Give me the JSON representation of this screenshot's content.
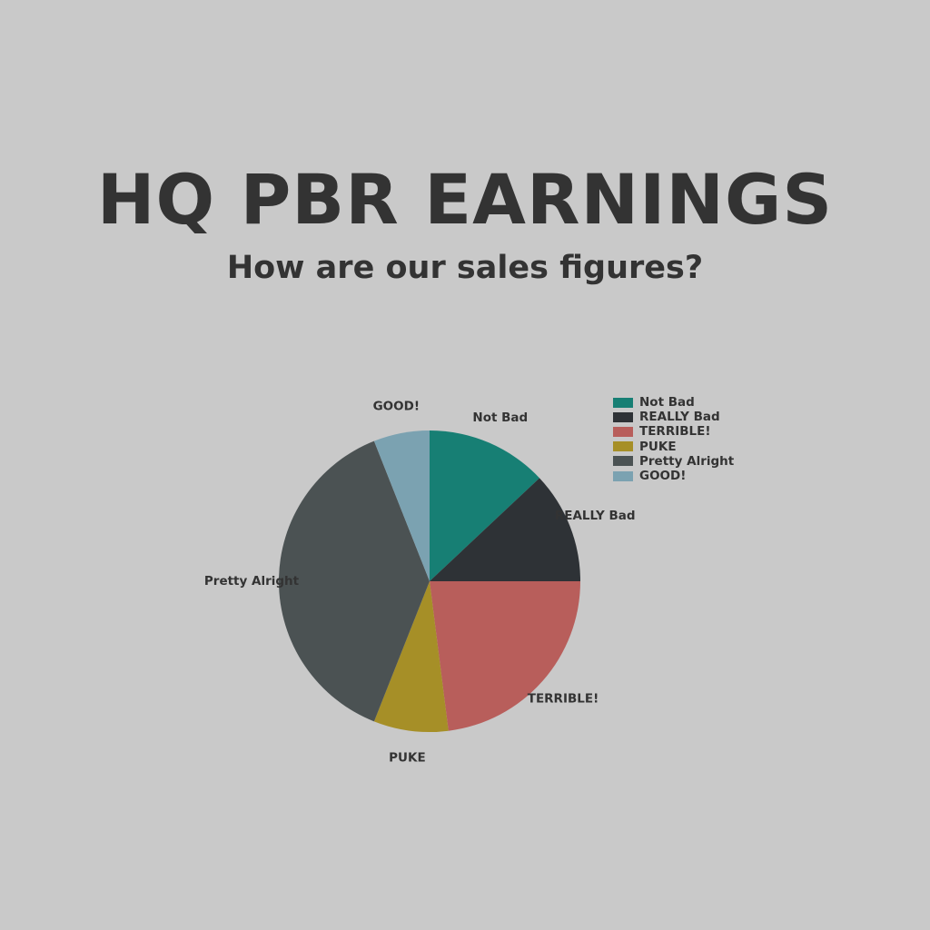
{
  "title": "HQ PBR EARNINGS",
  "subtitle": "How are our sales figures?",
  "chart_data": {
    "type": "pie",
    "title": "HQ PBR EARNINGS",
    "subtitle": "How are our sales figures?",
    "legend_position": "top-right",
    "start_angle": "top, clockwise",
    "slices": [
      {
        "label": "Not Bad",
        "value": 13,
        "color": "#177f74"
      },
      {
        "label": "REALLY Bad",
        "value": 12,
        "color": "#2e3236"
      },
      {
        "label": "TERRIBLE!",
        "value": 23,
        "color": "#b85e5b"
      },
      {
        "label": "PUKE",
        "value": 8,
        "color": "#a68f27"
      },
      {
        "label": "Pretty Alright",
        "value": 38,
        "color": "#4b5253"
      },
      {
        "label": "GOOD!",
        "value": 6,
        "color": "#7ba2b1"
      }
    ]
  }
}
